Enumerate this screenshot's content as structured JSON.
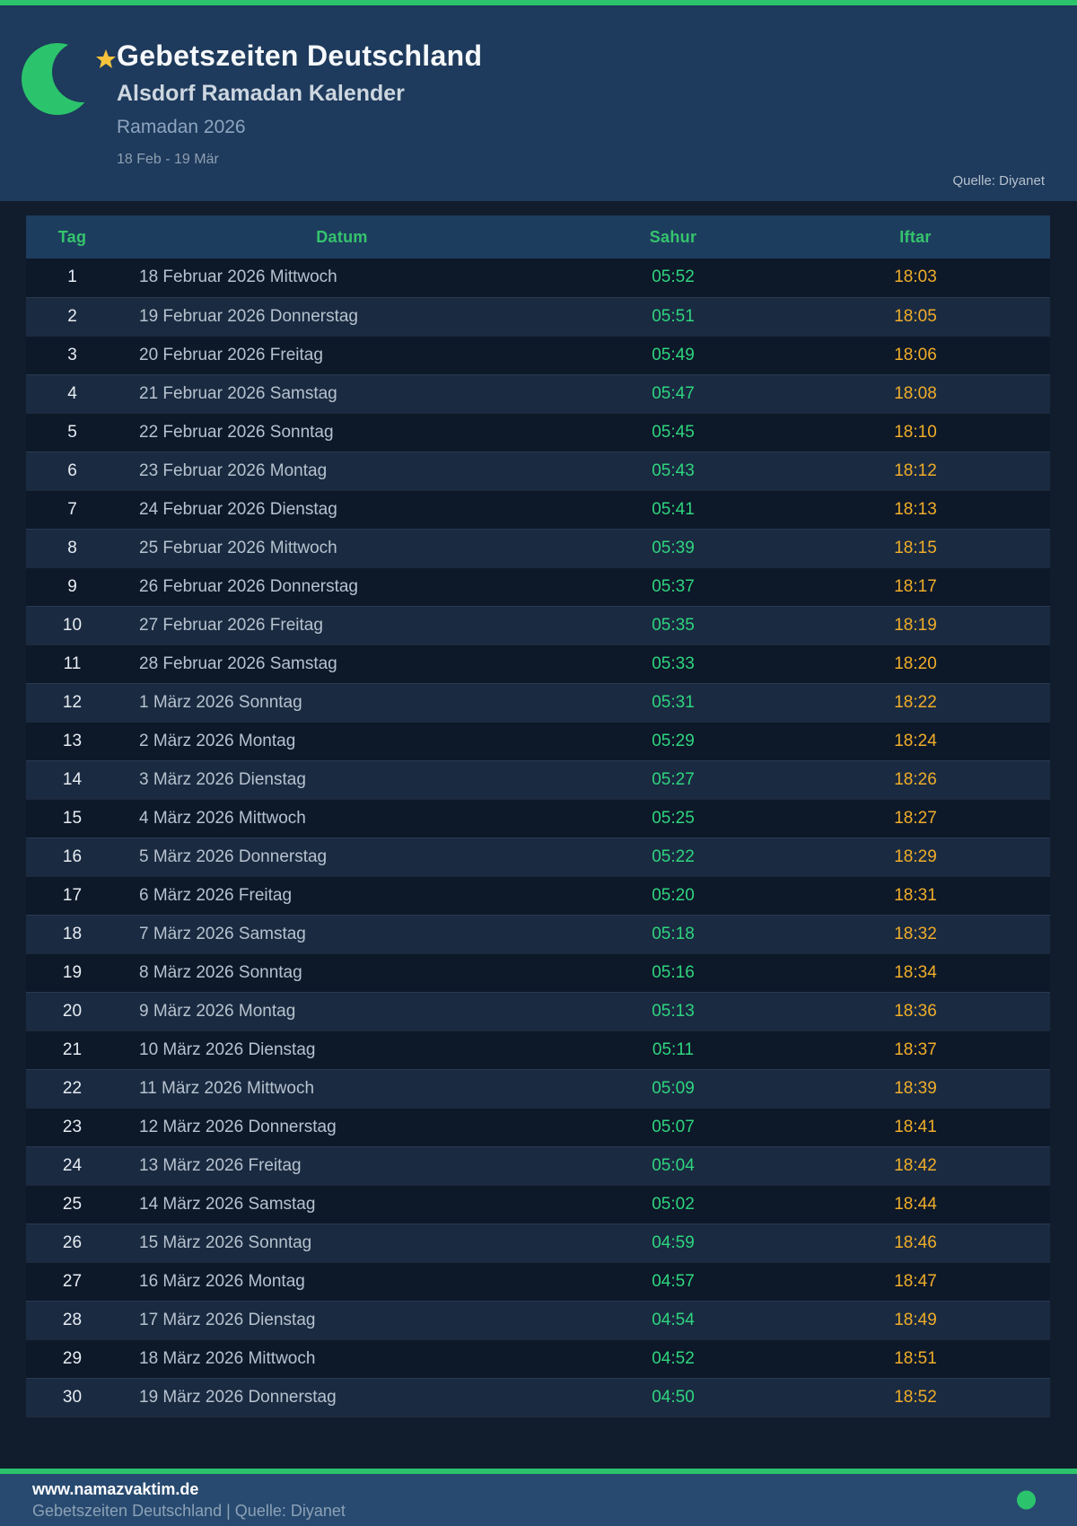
{
  "header": {
    "title": "Gebetszeiten Deutschland",
    "subtitle": "Alsdorf Ramadan Kalender",
    "season": "Ramadan 2026",
    "date_range": "18 Feb - 19 Mär",
    "source": "Quelle: Diyanet"
  },
  "table": {
    "columns": [
      "Tag",
      "Datum",
      "Sahur",
      "Iftar"
    ],
    "rows": [
      {
        "day": "1",
        "date": "18 Februar 2026 Mittwoch",
        "sahur": "05:52",
        "iftar": "18:03"
      },
      {
        "day": "2",
        "date": "19 Februar 2026 Donnerstag",
        "sahur": "05:51",
        "iftar": "18:05"
      },
      {
        "day": "3",
        "date": "20 Februar 2026 Freitag",
        "sahur": "05:49",
        "iftar": "18:06"
      },
      {
        "day": "4",
        "date": "21 Februar 2026 Samstag",
        "sahur": "05:47",
        "iftar": "18:08"
      },
      {
        "day": "5",
        "date": "22 Februar 2026 Sonntag",
        "sahur": "05:45",
        "iftar": "18:10"
      },
      {
        "day": "6",
        "date": "23 Februar 2026 Montag",
        "sahur": "05:43",
        "iftar": "18:12"
      },
      {
        "day": "7",
        "date": "24 Februar 2026 Dienstag",
        "sahur": "05:41",
        "iftar": "18:13"
      },
      {
        "day": "8",
        "date": "25 Februar 2026 Mittwoch",
        "sahur": "05:39",
        "iftar": "18:15"
      },
      {
        "day": "9",
        "date": "26 Februar 2026 Donnerstag",
        "sahur": "05:37",
        "iftar": "18:17"
      },
      {
        "day": "10",
        "date": "27 Februar 2026 Freitag",
        "sahur": "05:35",
        "iftar": "18:19"
      },
      {
        "day": "11",
        "date": "28 Februar 2026 Samstag",
        "sahur": "05:33",
        "iftar": "18:20"
      },
      {
        "day": "12",
        "date": "1 März 2026 Sonntag",
        "sahur": "05:31",
        "iftar": "18:22"
      },
      {
        "day": "13",
        "date": "2 März 2026 Montag",
        "sahur": "05:29",
        "iftar": "18:24"
      },
      {
        "day": "14",
        "date": "3 März 2026 Dienstag",
        "sahur": "05:27",
        "iftar": "18:26"
      },
      {
        "day": "15",
        "date": "4 März 2026 Mittwoch",
        "sahur": "05:25",
        "iftar": "18:27"
      },
      {
        "day": "16",
        "date": "5 März 2026 Donnerstag",
        "sahur": "05:22",
        "iftar": "18:29"
      },
      {
        "day": "17",
        "date": "6 März 2026 Freitag",
        "sahur": "05:20",
        "iftar": "18:31"
      },
      {
        "day": "18",
        "date": "7 März 2026 Samstag",
        "sahur": "05:18",
        "iftar": "18:32"
      },
      {
        "day": "19",
        "date": "8 März 2026 Sonntag",
        "sahur": "05:16",
        "iftar": "18:34"
      },
      {
        "day": "20",
        "date": "9 März 2026 Montag",
        "sahur": "05:13",
        "iftar": "18:36"
      },
      {
        "day": "21",
        "date": "10 März 2026 Dienstag",
        "sahur": "05:11",
        "iftar": "18:37"
      },
      {
        "day": "22",
        "date": "11 März 2026 Mittwoch",
        "sahur": "05:09",
        "iftar": "18:39"
      },
      {
        "day": "23",
        "date": "12 März 2026 Donnerstag",
        "sahur": "05:07",
        "iftar": "18:41"
      },
      {
        "day": "24",
        "date": "13 März 2026 Freitag",
        "sahur": "05:04",
        "iftar": "18:42"
      },
      {
        "day": "25",
        "date": "14 März 2026 Samstag",
        "sahur": "05:02",
        "iftar": "18:44"
      },
      {
        "day": "26",
        "date": "15 März 2026 Sonntag",
        "sahur": "04:59",
        "iftar": "18:46"
      },
      {
        "day": "27",
        "date": "16 März 2026 Montag",
        "sahur": "04:57",
        "iftar": "18:47"
      },
      {
        "day": "28",
        "date": "17 März 2026 Dienstag",
        "sahur": "04:54",
        "iftar": "18:49"
      },
      {
        "day": "29",
        "date": "18 März 2026 Mittwoch",
        "sahur": "04:52",
        "iftar": "18:51"
      },
      {
        "day": "30",
        "date": "19 März 2026 Donnerstag",
        "sahur": "04:50",
        "iftar": "18:52"
      }
    ]
  },
  "footer": {
    "website": "www.namazvaktim.de",
    "tagline": "Gebetszeiten Deutschland | Quelle: Diyanet"
  },
  "icons": {
    "moon": "crescent-moon-icon",
    "star": "star-icon",
    "dot": "status-dot-icon"
  },
  "colors": {
    "accent_green": "#2bc46c",
    "sahur_green": "#2fd57e",
    "iftar_amber": "#efad29",
    "star_gold": "#f5c33b",
    "header_navy": "#1e3a5c",
    "footer_navy": "#284a70",
    "page_dark": "#111c2d"
  }
}
